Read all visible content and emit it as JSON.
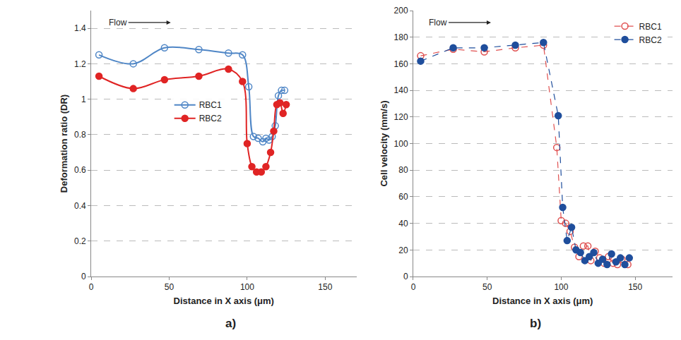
{
  "chart_data": [
    {
      "type": "line",
      "panel": "a)",
      "annotations": [
        "Flow"
      ],
      "x_label": "Distance in X axis (μm)",
      "y_label": "Deformation ratio (DR)",
      "xlim": [
        0,
        170
      ],
      "xticks": [
        0,
        50,
        100,
        150
      ],
      "ylim": [
        0,
        1.5
      ],
      "yticks": [
        0,
        0.2,
        0.4,
        0.6,
        0.8,
        1,
        1.2,
        1.4
      ],
      "grid": "y",
      "legend": "center",
      "series": [
        {
          "name": "RBC1",
          "color": "#4f86c6",
          "marker": "circle-open",
          "line_style": "spline",
          "x": [
            5,
            27,
            47,
            69,
            88,
            97,
            101,
            104,
            107,
            110,
            112,
            114,
            116,
            118,
            120,
            122,
            124
          ],
          "values": [
            1.25,
            1.2,
            1.29,
            1.28,
            1.26,
            1.25,
            1.07,
            0.79,
            0.78,
            0.76,
            0.78,
            0.77,
            0.79,
            0.85,
            1.02,
            1.05,
            1.05
          ]
        },
        {
          "name": "RBC2",
          "color": "#e02424",
          "marker": "circle",
          "line_style": "spline",
          "x": [
            5,
            27,
            47,
            69,
            88,
            97,
            100,
            103,
            106,
            109,
            112,
            115,
            117,
            119,
            121,
            123,
            125
          ],
          "values": [
            1.13,
            1.06,
            1.11,
            1.13,
            1.17,
            1.1,
            0.75,
            0.62,
            0.59,
            0.59,
            0.62,
            0.7,
            0.82,
            0.97,
            0.98,
            0.92,
            0.97
          ]
        }
      ]
    },
    {
      "type": "line",
      "panel": "b)",
      "annotations": [
        "Flow"
      ],
      "x_label": "Distance in X axis (μm)",
      "y_label": "Cell velocity (mm/s)",
      "xlim": [
        0,
        175
      ],
      "xticks": [
        0,
        50,
        100,
        150
      ],
      "ylim": [
        0,
        200
      ],
      "yticks": [
        0,
        20,
        40,
        60,
        80,
        100,
        120,
        140,
        160,
        180,
        200
      ],
      "grid": "y",
      "legend": "upper right",
      "series": [
        {
          "name": "RBC1",
          "color": "#e05050",
          "marker": "circle-open",
          "line_style": "dash",
          "x": [
            5,
            27,
            48,
            69,
            88,
            97,
            100,
            103,
            106,
            109,
            112,
            115,
            118,
            120,
            123,
            126,
            129,
            132,
            135,
            138,
            141,
            145
          ],
          "values": [
            166,
            171,
            169,
            172,
            174,
            97,
            42,
            40,
            34,
            22,
            15,
            23,
            23,
            12,
            19,
            14,
            10,
            15,
            10,
            9,
            13,
            9
          ]
        },
        {
          "name": "RBC2",
          "color": "#1f4e9c",
          "marker": "circle",
          "line_style": "dash",
          "x": [
            5,
            27,
            48,
            69,
            88,
            98,
            101,
            104,
            107,
            110,
            113,
            116,
            119,
            122,
            125,
            128,
            131,
            134,
            137,
            140,
            143,
            146
          ],
          "values": [
            162,
            172,
            172,
            174,
            176,
            121,
            52,
            27,
            37,
            20,
            18,
            12,
            15,
            18,
            10,
            13,
            9,
            17,
            11,
            14,
            9,
            14
          ]
        }
      ]
    }
  ]
}
